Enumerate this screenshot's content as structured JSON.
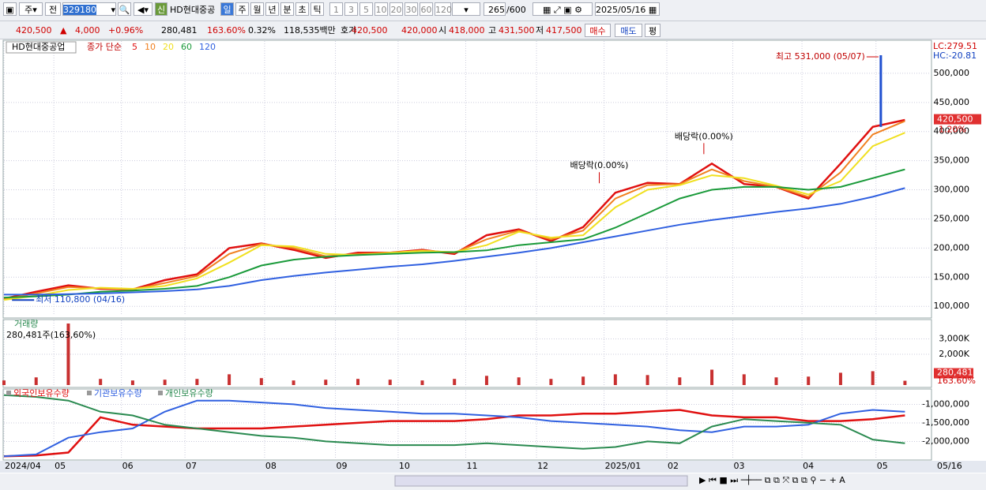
{
  "toolbar": {
    "market": "주",
    "prev": "전",
    "code": "329180",
    "new": "신",
    "name": "HD현대중공",
    "periods": [
      "일",
      "주",
      "월",
      "년",
      "분",
      "초",
      "틱"
    ],
    "intervals": [
      "1",
      "3",
      "5",
      "10",
      "20",
      "30",
      "60",
      "120"
    ],
    "count": "265",
    "max": "/600",
    "date": "2025/05/16"
  },
  "quote": {
    "price": "420,500",
    "arrow": "▲",
    "change": "4,000",
    "pct": "+0.96%",
    "volume": "280,481",
    "vol_ratio": "163.60%",
    "turnover": "0.32%",
    "amount": "118,535백만",
    "bid_label": "호가",
    "bid": "420,500",
    "ask": "420,000",
    "open_label": "시",
    "open": "418,000",
    "high_label": "고",
    "high": "431,500",
    "low_label": "저",
    "low": "417,500",
    "buy": "매수",
    "sell": "매도",
    "avg": "평"
  },
  "chart_data": [
    {
      "type": "line",
      "title": "HD현대중공업",
      "legend_prefix": "종가 단순",
      "x": [
        0,
        2,
        4,
        6,
        8,
        10,
        12,
        14,
        16,
        18,
        20,
        22,
        24,
        26,
        28,
        30,
        32,
        34,
        36,
        38,
        40,
        42,
        44,
        46,
        48,
        50,
        52,
        54,
        56
      ],
      "series": [
        {
          "name": "5",
          "color": "#e01010",
          "values": [
            113000,
            125000,
            136000,
            130000,
            129000,
            145000,
            155000,
            200000,
            208000,
            197000,
            183000,
            192000,
            192000,
            197000,
            190000,
            222000,
            232000,
            212000,
            236000,
            295000,
            312000,
            310000,
            345000,
            310000,
            305000,
            285000,
            345000,
            408000,
            420000
          ]
        },
        {
          "name": "10",
          "color": "#f08020",
          "values": [
            112000,
            122000,
            133000,
            131000,
            129000,
            140000,
            152000,
            190000,
            207000,
            200000,
            186000,
            190000,
            192000,
            196000,
            192000,
            215000,
            230000,
            215000,
            230000,
            285000,
            308000,
            310000,
            335000,
            315000,
            305000,
            288000,
            330000,
            395000,
            418000
          ]
        },
        {
          "name": "20",
          "color": "#f0e020",
          "values": [
            111000,
            118000,
            128000,
            132000,
            130000,
            135000,
            148000,
            175000,
            205000,
            203000,
            190000,
            188000,
            192000,
            195000,
            193000,
            205000,
            228000,
            218000,
            222000,
            270000,
            300000,
            308000,
            325000,
            320000,
            307000,
            292000,
            315000,
            375000,
            398000
          ]
        },
        {
          "name": "60",
          "color": "#1a9a3a",
          "values": [
            115000,
            117000,
            120000,
            125000,
            127000,
            130000,
            135000,
            150000,
            170000,
            180000,
            185000,
            188000,
            190000,
            192000,
            193000,
            196000,
            205000,
            210000,
            215000,
            235000,
            260000,
            285000,
            300000,
            305000,
            305000,
            300000,
            305000,
            320000,
            335000
          ]
        },
        {
          "name": "120",
          "color": "#3060e0",
          "values": [
            120000,
            120000,
            121000,
            122000,
            124000,
            126000,
            129000,
            135000,
            145000,
            152000,
            158000,
            163000,
            168000,
            172000,
            178000,
            185000,
            192000,
            200000,
            210000,
            220000,
            230000,
            240000,
            248000,
            255000,
            262000,
            268000,
            276000,
            288000,
            303000
          ]
        }
      ],
      "xlim": [
        0,
        57.6
      ],
      "ylim": [
        84000,
        550000
      ],
      "grid": true,
      "yticks": [
        {
          "value": 100000,
          "label": "100,000"
        },
        {
          "value": 150000,
          "label": "150,000"
        },
        {
          "value": 200000,
          "label": "200,000"
        },
        {
          "value": 250000,
          "label": "250,000"
        },
        {
          "value": 300000,
          "label": "300,000"
        },
        {
          "value": 350000,
          "label": "350,000"
        },
        {
          "value": 400000,
          "label": "400,000"
        },
        {
          "value": 450000,
          "label": "450,000"
        },
        {
          "value": 500000,
          "label": "500,000"
        }
      ],
      "high": {
        "label": "최고 531,000 (05/07)",
        "x": 54.5,
        "value": 531000
      },
      "low": {
        "label": "최저 110,800 (04/16)",
        "x": 0.5,
        "value": 110800
      },
      "events": [
        {
          "label": "배당락(0.00%)",
          "x": 37
        },
        {
          "label": "배당락(0.00%)",
          "x": 43.5
        }
      ],
      "lc": "LC:279.51",
      "hc": "HC:-20.81",
      "last": {
        "value": 420500,
        "label": "420,500"
      },
      "last_pct": "1.20%"
    },
    {
      "type": "bar",
      "title": "거래량",
      "subtitle": "280,481주(163,60%)",
      "color": "#c83030",
      "x": [
        0,
        2,
        4,
        6,
        8,
        10,
        12,
        14,
        16,
        18,
        20,
        22,
        24,
        26,
        28,
        30,
        32,
        34,
        36,
        38,
        40,
        42,
        44,
        46,
        48,
        50,
        52,
        54,
        56
      ],
      "values": [
        300000,
        500000,
        4000000,
        400000,
        300000,
        350000,
        400000,
        700000,
        450000,
        300000,
        350000,
        400000,
        350000,
        300000,
        400000,
        600000,
        500000,
        400000,
        550000,
        700000,
        650000,
        500000,
        1000000,
        700000,
        500000,
        550000,
        800000,
        900000,
        280481
      ],
      "xlim": [
        0,
        57.6
      ],
      "ylim": [
        0,
        4000000
      ],
      "grid": true,
      "yticks": [
        {
          "value": 2000000,
          "label": "2,000K"
        },
        {
          "value": 3000000,
          "label": "3,000K"
        }
      ],
      "last": {
        "value": 280481,
        "label": "280,481"
      },
      "last_pct": "163.60%"
    },
    {
      "type": "line",
      "x": [
        0,
        2,
        4,
        6,
        8,
        10,
        12,
        14,
        16,
        18,
        20,
        22,
        24,
        26,
        28,
        30,
        32,
        34,
        36,
        38,
        40,
        42,
        44,
        46,
        48,
        50,
        52,
        54,
        56
      ],
      "series": [
        {
          "name": "외국인보유수량",
          "color": "#e01010",
          "values": [
            -2400000,
            -2380000,
            -2300000,
            -1350000,
            -1550000,
            -1600000,
            -1650000,
            -1650000,
            -1650000,
            -1600000,
            -1550000,
            -1500000,
            -1450000,
            -1450000,
            -1450000,
            -1400000,
            -1300000,
            -1300000,
            -1250000,
            -1250000,
            -1200000,
            -1150000,
            -1300000,
            -1350000,
            -1350000,
            -1450000,
            -1450000,
            -1400000,
            -1300000
          ]
        },
        {
          "name": "기관보유수량",
          "color": "#3060e0",
          "values": [
            -2400000,
            -2350000,
            -1900000,
            -1750000,
            -1650000,
            -1200000,
            -900000,
            -900000,
            -950000,
            -1000000,
            -1100000,
            -1150000,
            -1200000,
            -1250000,
            -1250000,
            -1300000,
            -1350000,
            -1450000,
            -1500000,
            -1550000,
            -1600000,
            -1700000,
            -1750000,
            -1600000,
            -1600000,
            -1550000,
            -1250000,
            -1150000,
            -1200000
          ]
        },
        {
          "name": "개인보유수량",
          "color": "#2a8a50",
          "values": [
            -750000,
            -800000,
            -900000,
            -1200000,
            -1300000,
            -1550000,
            -1650000,
            -1750000,
            -1850000,
            -1900000,
            -2000000,
            -2050000,
            -2100000,
            -2100000,
            -2100000,
            -2050000,
            -2100000,
            -2150000,
            -2200000,
            -2150000,
            -2000000,
            -2050000,
            -1600000,
            -1400000,
            -1450000,
            -1500000,
            -1550000,
            -1950000,
            -2050000
          ]
        }
      ],
      "xlim": [
        0,
        57.6
      ],
      "ylim": [
        -2480000,
        -650000
      ],
      "grid": true,
      "yticks": [
        {
          "value": -1000000,
          "label": "-1,000,000"
        },
        {
          "value": -1500000,
          "label": "-1,500,000"
        },
        {
          "value": -2000000,
          "label": "-2,000,000"
        }
      ],
      "xticks": [
        {
          "value": 0,
          "label": "2024/04"
        },
        {
          "value": 3.1,
          "label": "05"
        },
        {
          "value": 7.3,
          "label": "06"
        },
        {
          "value": 11.25,
          "label": "07"
        },
        {
          "value": 16.2,
          "label": "08"
        },
        {
          "value": 20.6,
          "label": "09"
        },
        {
          "value": 24.5,
          "label": "10"
        },
        {
          "value": 28.7,
          "label": "11"
        },
        {
          "value": 33.1,
          "label": "12"
        },
        {
          "value": 37.3,
          "label": "2025/01"
        },
        {
          "value": 41.2,
          "label": "02"
        },
        {
          "value": 45.3,
          "label": "03"
        },
        {
          "value": 49.6,
          "label": "04"
        },
        {
          "value": 54.2,
          "label": "05"
        }
      ],
      "last_date": "05/16"
    }
  ]
}
